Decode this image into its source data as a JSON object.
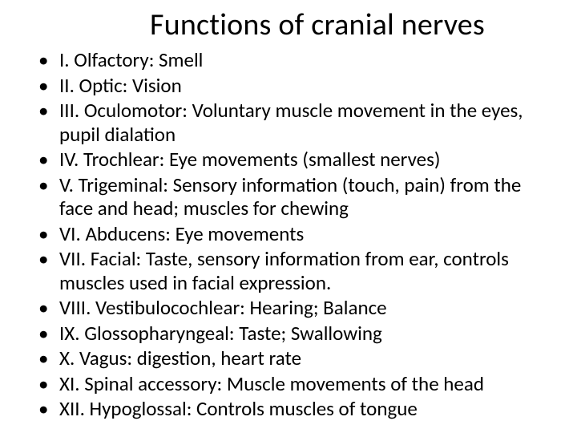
{
  "title": "Functions of cranial nerves",
  "items": [
    "I. Olfactory: Smell",
    "II. Optic: Vision",
    "III. Oculomotor: Voluntary muscle movement in the eyes, pupil dialation",
    "IV. Trochlear: Eye movements (smallest nerves)",
    "V. Trigeminal: Sensory information (touch, pain) from the face and head; muscles for chewing",
    "VI. Abducens: Eye movements",
    "VII. Facial: Taste, sensory information from ear, controls muscles used in facial expression.",
    "VIII. Vestibulocochlear: Hearing; Balance",
    "IX. Glossopharyngeal: Taste; Swallowing",
    "X. Vagus: digestion, heart rate",
    "XI. Spinal accessory: Muscle movements of the head",
    "XII. Hypoglossal: Controls muscles of tongue"
  ],
  "colors": {
    "background": "#ffffff",
    "text": "#000000"
  },
  "typography": {
    "title_fontsize_pt": 30,
    "body_fontsize_pt": 19,
    "font_family": "Calibri"
  }
}
